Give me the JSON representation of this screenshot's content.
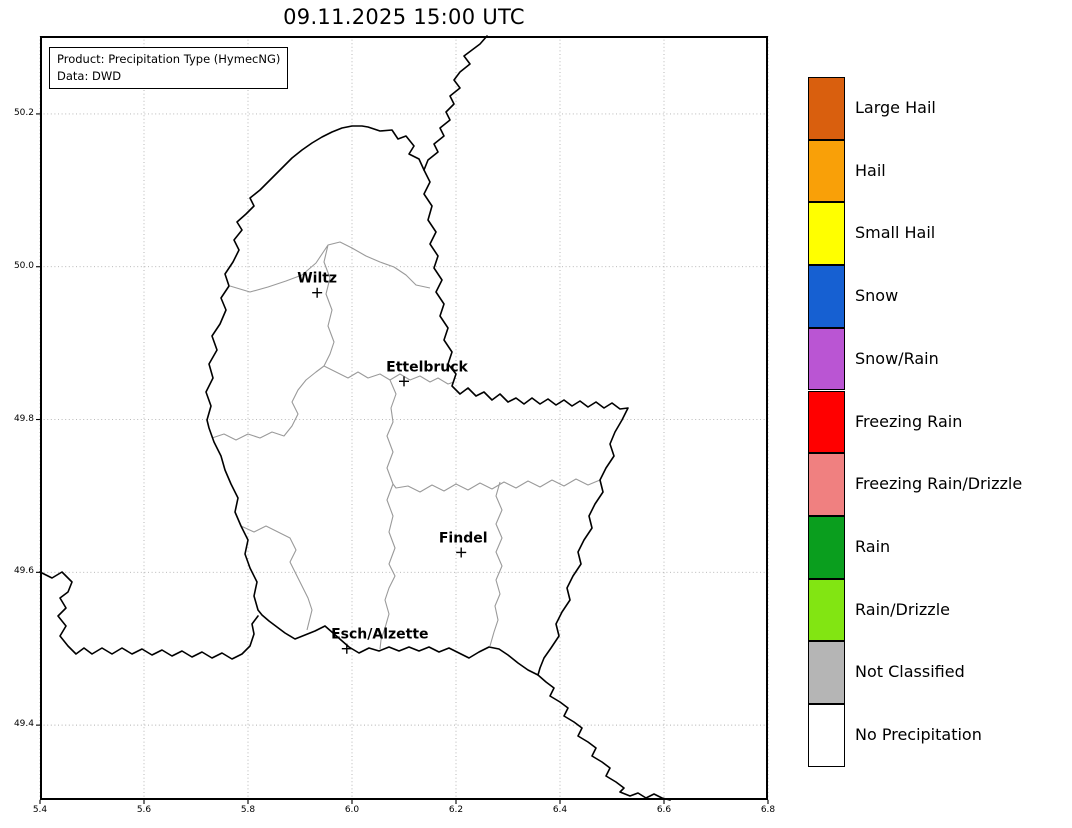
{
  "figure": {
    "title": "09.11.2025 15:00 UTC",
    "product_line": "Product: Precipitation Type (HymecNG)",
    "data_line": "Data: DWD"
  },
  "chart_data": {
    "type": "map",
    "map_region": "Luxembourg",
    "title": "09.11.2025 15:00 UTC",
    "product": "Precipitation Type (HymecNG)",
    "data_source": "DWD",
    "xlim": [
      5.4,
      6.8
    ],
    "ylim": [
      49.302,
      50.302
    ],
    "x_ticks": [
      5.4,
      5.6,
      5.8,
      6.0,
      6.2,
      6.4,
      6.6,
      6.8
    ],
    "x_tick_labels": [
      "5.4",
      "5.6",
      "5.8",
      "6.0",
      "6.2",
      "6.4",
      "6.6",
      "6.8"
    ],
    "y_ticks": [
      49.4,
      49.6,
      49.8,
      50.0,
      50.2
    ],
    "y_tick_labels": [
      "49.4",
      "49.6",
      "49.8",
      "50.0",
      "50.2"
    ],
    "grid": "dotted",
    "precipitation_display": "none visible (map area white = No Precipitation)",
    "cities": [
      {
        "name": "Wiltz",
        "lon": 5.933,
        "lat": 49.966,
        "label_dx": 0
      },
      {
        "name": "Ettelbruck",
        "lon": 6.1,
        "lat": 49.85,
        "label_dx": 23
      },
      {
        "name": "Findel",
        "lon": 6.21,
        "lat": 49.626,
        "label_dx": 2
      },
      {
        "name": "Esch/Alzette",
        "lon": 5.99,
        "lat": 49.5,
        "label_dx": 33
      }
    ],
    "legend": [
      {
        "label": "Large Hail",
        "color": "#d95f0e"
      },
      {
        "label": "Hail",
        "color": "#f9a008"
      },
      {
        "label": "Small Hail",
        "color": "#ffff00"
      },
      {
        "label": "Snow",
        "color": "#1660d2"
      },
      {
        "label": "Snow/Rain",
        "color": "#ba55d3"
      },
      {
        "label": "Freezing Rain",
        "color": "#ff0000"
      },
      {
        "label": "Freezing Rain/Drizzle",
        "color": "#f08080"
      },
      {
        "label": "Rain",
        "color": "#0a9e1e"
      },
      {
        "label": "Rain/Drizzle",
        "color": "#82e512"
      },
      {
        "label": "Not Classified",
        "color": "#b5b5b5"
      },
      {
        "label": "No Precipitation",
        "color": "#ffffff"
      }
    ]
  }
}
